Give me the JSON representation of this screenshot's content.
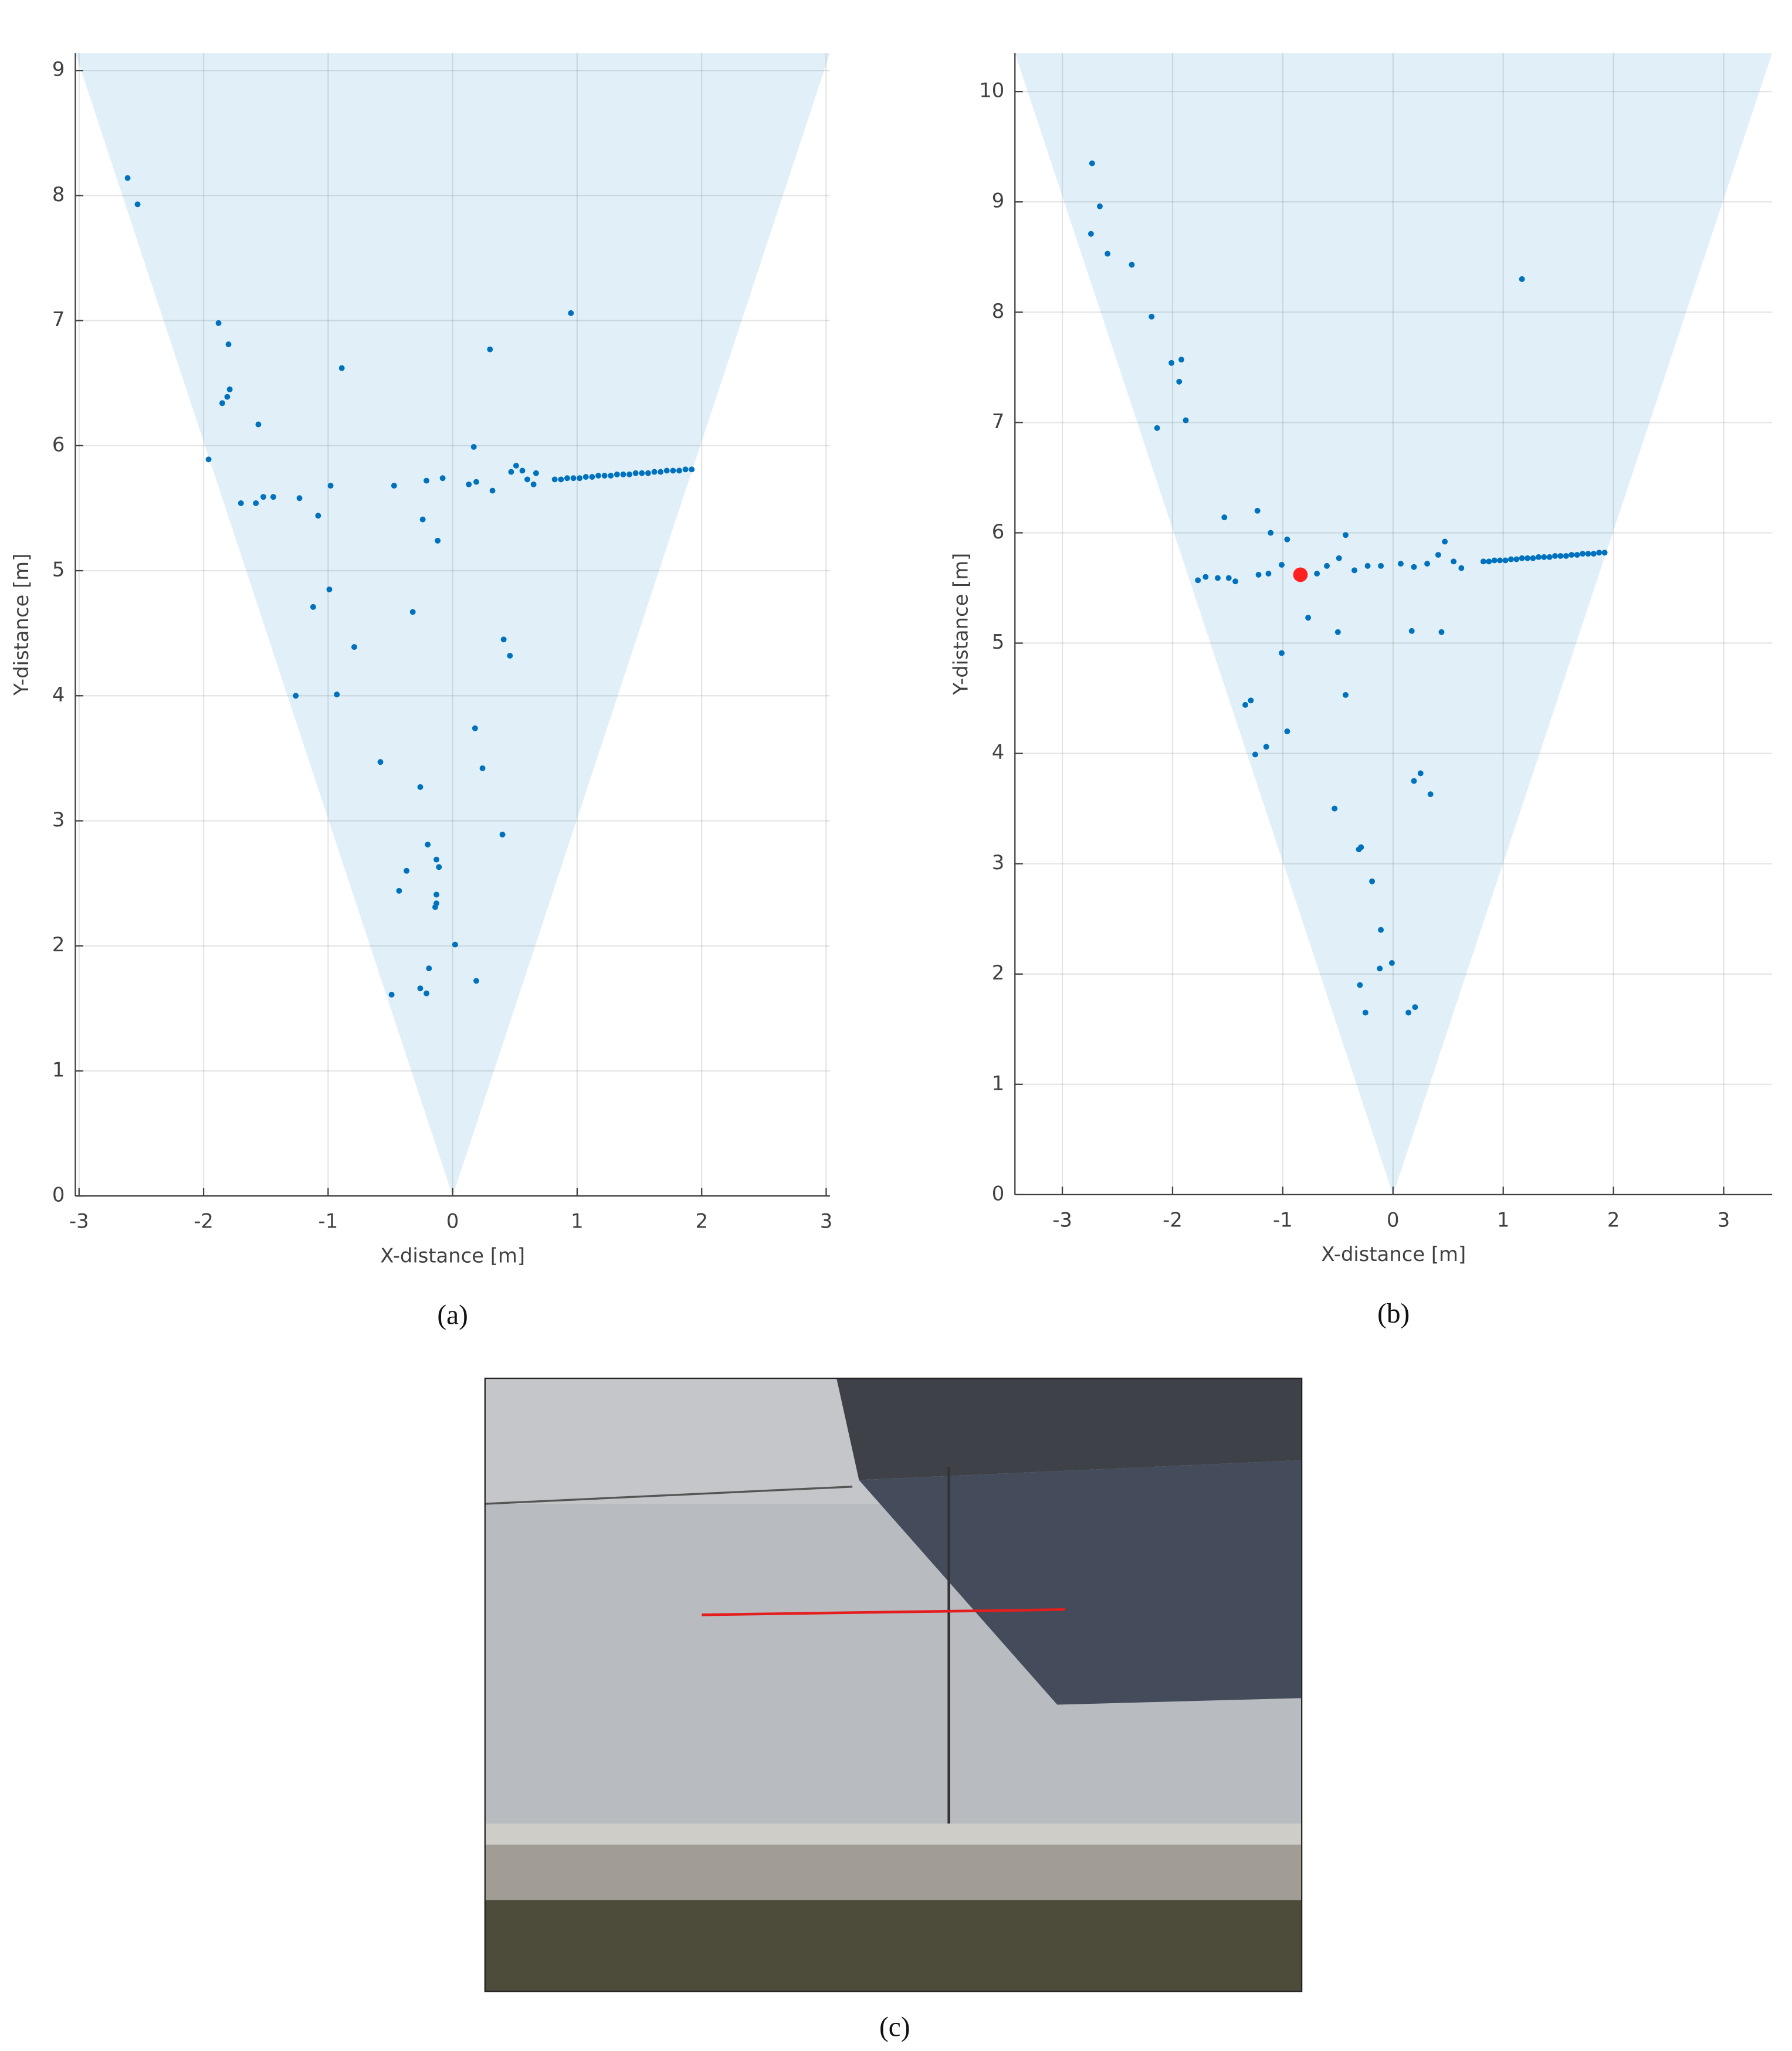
{
  "chart_data": [
    {
      "type": "scatter",
      "xlabel": "X-distance [m]",
      "ylabel": "Y-distance [m]",
      "caption": "(a)",
      "xlim": [
        -3.03,
        3.03
      ],
      "ylim": [
        0,
        9.14
      ],
      "xticks": [
        -3,
        -2,
        -1,
        0,
        1,
        2,
        3
      ],
      "yticks": [
        0,
        1,
        2,
        3,
        4,
        5,
        6,
        7,
        8,
        9
      ],
      "grid": true,
      "region": {
        "color": "#e1f0f8",
        "x": [
          -3.03,
          0,
          3.03
        ],
        "y": [
          9.14,
          0,
          9.14
        ]
      },
      "series": [
        {
          "color": "#0072bd",
          "x": [
            -2.61,
            -2.53,
            -1.88,
            -1.8,
            -1.79,
            -1.81,
            -1.85,
            -1.56,
            -1.96,
            -1.7,
            -1.58,
            -1.52,
            -1.44,
            -1.23,
            -1.08,
            -0.98,
            -0.89,
            -0.99,
            -1.12,
            -0.79,
            -1.26,
            -0.93,
            -0.58,
            -0.47,
            -0.32,
            -0.26,
            -0.24,
            -0.21,
            -0.12,
            -0.08,
            -0.2,
            -0.37,
            -0.43,
            -0.13,
            -0.11,
            -0.13,
            -0.13,
            -0.14,
            0.02,
            -0.19,
            -0.26,
            -0.21,
            -0.49,
            0.19,
            0.18,
            0.24,
            0.4,
            0.41,
            0.46,
            0.17,
            0.13,
            0.19,
            0.3,
            0.32,
            0.47,
            0.51,
            0.56,
            0.6,
            0.67,
            0.65,
            0.95,
            0.82,
            0.87,
            0.92,
            0.97,
            1.02,
            1.07,
            1.12,
            1.17,
            1.22,
            1.27,
            1.32,
            1.37,
            1.42,
            1.47,
            1.52,
            1.57,
            1.62,
            1.67,
            1.72,
            1.77,
            1.82,
            1.87,
            1.92
          ],
          "y": [
            8.14,
            7.93,
            6.98,
            6.81,
            6.45,
            6.39,
            6.34,
            6.17,
            5.89,
            5.54,
            5.54,
            5.59,
            5.59,
            5.58,
            5.44,
            5.68,
            6.62,
            4.85,
            4.71,
            4.39,
            4.0,
            4.01,
            3.47,
            5.68,
            4.67,
            3.27,
            5.41,
            5.72,
            5.24,
            5.74,
            2.81,
            2.6,
            2.44,
            2.69,
            2.63,
            2.41,
            2.34,
            2.31,
            2.01,
            1.82,
            1.66,
            1.62,
            1.61,
            1.72,
            3.74,
            3.42,
            2.89,
            4.45,
            4.32,
            5.99,
            5.69,
            5.71,
            6.77,
            5.64,
            5.79,
            5.84,
            5.8,
            5.73,
            5.78,
            5.69,
            7.06,
            5.73,
            5.73,
            5.74,
            5.74,
            5.74,
            5.75,
            5.75,
            5.76,
            5.76,
            5.76,
            5.77,
            5.77,
            5.77,
            5.78,
            5.78,
            5.78,
            5.79,
            5.79,
            5.8,
            5.8,
            5.8,
            5.81,
            5.81
          ]
        }
      ]
    },
    {
      "type": "scatter",
      "xlabel": "X-distance [m]",
      "ylabel": "Y-distance [m]",
      "caption": "(b)",
      "xlim": [
        -3.43,
        3.44
      ],
      "ylim": [
        0,
        10.35
      ],
      "xticks": [
        -3,
        -2,
        -1,
        0,
        1,
        2,
        3
      ],
      "yticks": [
        0,
        1,
        2,
        3,
        4,
        5,
        6,
        7,
        8,
        9,
        10
      ],
      "grid": true,
      "region": {
        "color": "#e1f0f8",
        "x": [
          -3.43,
          0,
          3.44
        ],
        "y": [
          10.35,
          0,
          10.35
        ]
      },
      "series": [
        {
          "color": "#0072bd",
          "x": [
            -2.73,
            -2.66,
            -2.74,
            -2.59,
            -2.37,
            -2.19,
            -2.01,
            -1.92,
            -1.94,
            -1.88,
            -2.14,
            -1.53,
            -1.23,
            -1.11,
            -0.96,
            -1.77,
            -1.7,
            -1.59,
            -1.49,
            -1.43,
            -1.22,
            -1.13,
            -1.01,
            -0.69,
            -0.6,
            -0.49,
            -0.43,
            -0.35,
            -0.23,
            -0.11,
            0.07,
            0.19,
            0.31,
            0.41,
            0.47,
            0.55,
            0.62,
            -0.77,
            -0.5,
            0.17,
            0.44,
            -1.01,
            -0.43,
            -1.29,
            -1.34,
            -0.96,
            -1.15,
            -1.25,
            -0.53,
            -0.29,
            -0.31,
            -0.19,
            0.19,
            0.25,
            0.34,
            -0.11,
            -0.01,
            -0.12,
            -0.3,
            -0.25,
            0.14,
            0.2,
            1.17,
            0.82,
            0.87,
            0.92,
            0.97,
            1.02,
            1.07,
            1.12,
            1.17,
            1.22,
            1.27,
            1.32,
            1.37,
            1.42,
            1.47,
            1.52,
            1.57,
            1.62,
            1.67,
            1.72,
            1.77,
            1.82,
            1.87,
            1.92
          ],
          "y": [
            9.35,
            8.96,
            8.71,
            8.53,
            8.43,
            7.96,
            7.54,
            7.57,
            7.37,
            7.02,
            6.95,
            6.14,
            6.2,
            6.0,
            5.94,
            5.57,
            5.6,
            5.59,
            5.59,
            5.56,
            5.62,
            5.63,
            5.71,
            5.63,
            5.7,
            5.77,
            5.98,
            5.66,
            5.7,
            5.7,
            5.72,
            5.69,
            5.72,
            5.8,
            5.92,
            5.74,
            5.68,
            5.23,
            5.1,
            5.11,
            5.1,
            4.91,
            4.53,
            4.48,
            4.44,
            4.2,
            4.06,
            3.99,
            3.5,
            3.15,
            3.13,
            2.84,
            3.75,
            3.82,
            3.63,
            2.4,
            2.1,
            2.05,
            1.9,
            1.65,
            1.65,
            1.7,
            8.3,
            5.74,
            5.74,
            5.75,
            5.75,
            5.75,
            5.76,
            5.76,
            5.77,
            5.77,
            5.77,
            5.78,
            5.78,
            5.78,
            5.79,
            5.79,
            5.79,
            5.8,
            5.8,
            5.81,
            5.81,
            5.81,
            5.82,
            5.82
          ]
        },
        {
          "color": "#ff2020",
          "x": [
            -0.84
          ],
          "y": [
            5.62
          ]
        }
      ]
    }
  ],
  "figure_c": {
    "caption": "(c)"
  }
}
